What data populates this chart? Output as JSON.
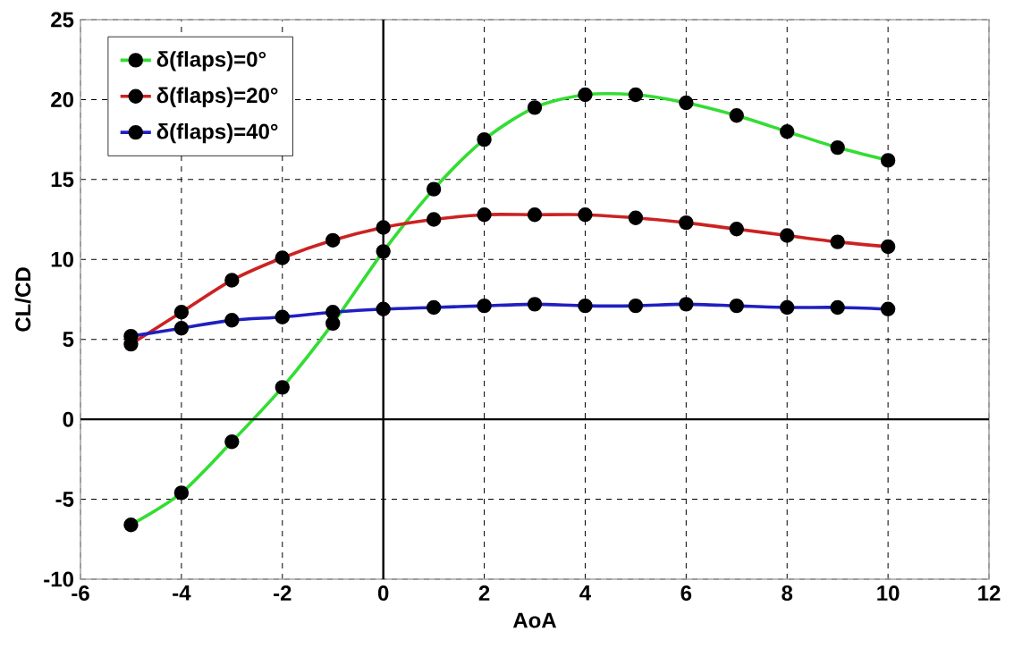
{
  "chart_data": {
    "type": "line",
    "xlabel": "AoA",
    "ylabel": "CL/CD",
    "x": [
      -5,
      -4,
      -3,
      -2,
      -1,
      0,
      1,
      2,
      3,
      4,
      5,
      6,
      7,
      8,
      9,
      10
    ],
    "series": [
      {
        "name": "δ(flaps)=0°",
        "color": "#33dd33",
        "values": [
          -6.6,
          -4.6,
          -1.4,
          2.0,
          6.0,
          10.5,
          14.4,
          17.5,
          19.5,
          20.3,
          20.3,
          19.8,
          19.0,
          18.0,
          17.0,
          16.2
        ]
      },
      {
        "name": "δ(flaps)=20°",
        "color": "#cc2222",
        "values": [
          4.7,
          6.7,
          8.7,
          10.1,
          11.2,
          12.0,
          12.5,
          12.8,
          12.8,
          12.8,
          12.6,
          12.3,
          11.9,
          11.5,
          11.1,
          10.8
        ]
      },
      {
        "name": "δ(flaps)=40°",
        "color": "#2020c0",
        "values": [
          5.2,
          5.7,
          6.2,
          6.4,
          6.7,
          6.9,
          7.0,
          7.1,
          7.2,
          7.1,
          7.1,
          7.2,
          7.1,
          7.0,
          7.0,
          6.9
        ]
      }
    ],
    "xlim": [
      -6,
      12
    ],
    "xticks": [
      -6,
      -4,
      -2,
      0,
      2,
      4,
      6,
      8,
      10,
      12
    ],
    "ylim": [
      -10,
      25
    ],
    "yticks": [
      -10,
      -5,
      0,
      5,
      10,
      15,
      20,
      25
    ],
    "grid": true,
    "legend": "top left",
    "marker": "circle",
    "line_style": "solid"
  }
}
